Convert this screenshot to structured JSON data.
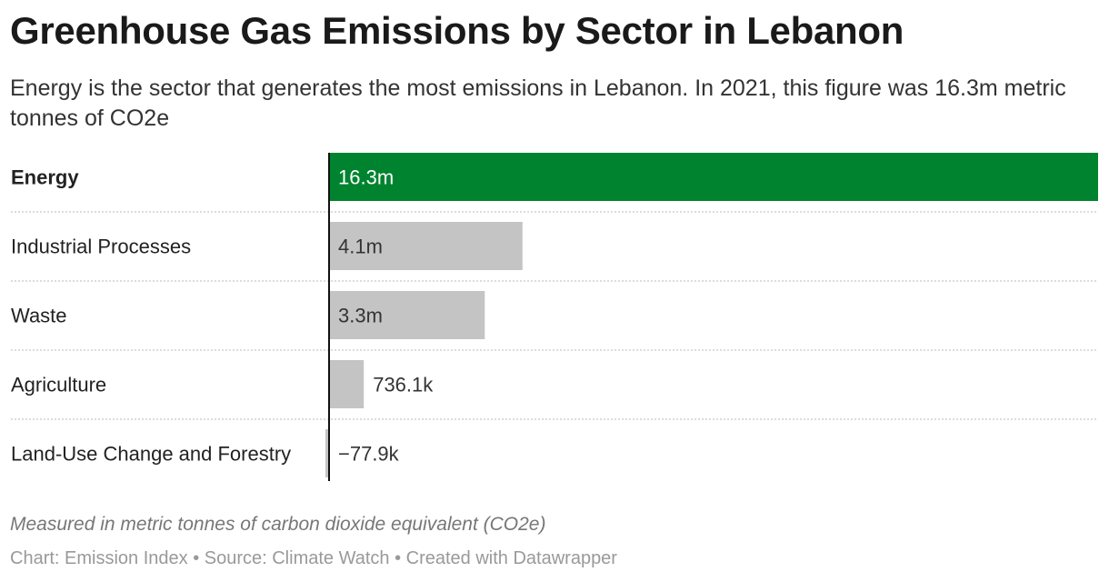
{
  "header": {
    "title": "Greenhouse Gas Emissions by Sector in Lebanon",
    "subtitle": "Energy is the sector that generates the most emissions in Lebanon. In 2021, this figure was 16.3m metric tonnes of CO2e"
  },
  "footer": {
    "notes": "Measured in metric tonnes of carbon dioxide equivalent (CO2e)",
    "credits": "Chart: Emission Index • Source: Climate Watch • Created with Datawrapper"
  },
  "chart_data": {
    "type": "bar",
    "orientation": "horizontal",
    "categories": [
      "Energy",
      "Industrial Processes",
      "Waste",
      "Agriculture",
      "Land-Use Change and Forestry"
    ],
    "values": [
      16300000,
      4100000,
      3300000,
      736100,
      -77900
    ],
    "value_labels": [
      "16.3m",
      "4.1m",
      "3.3m",
      "736.1k",
      "−77.9k"
    ],
    "highlighted_category": "Energy",
    "colors": {
      "highlight": "#00832f",
      "default": "#c4c4c4",
      "baseline": "#111111",
      "separator": "#c8c8c8",
      "label_on_highlight": "#ffffff",
      "label_default": "#333333"
    },
    "xlim": [
      -77900,
      16300000
    ],
    "grid": false,
    "legend": "none"
  }
}
